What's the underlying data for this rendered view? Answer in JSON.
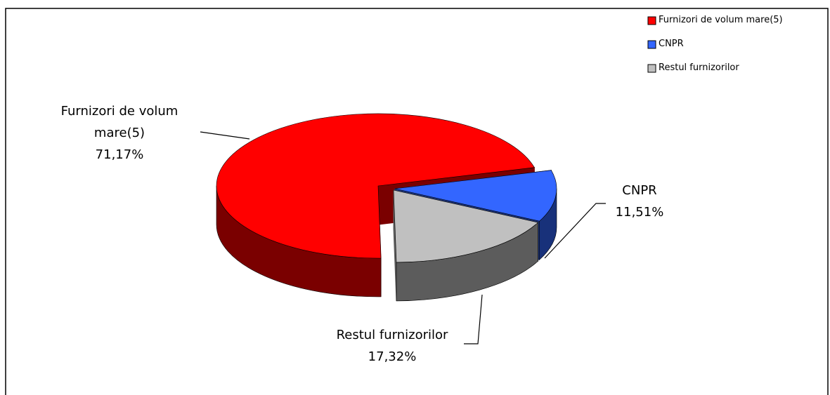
{
  "chart_data": {
    "type": "pie",
    "categories": [
      "Furnizori de volum mare(5)",
      "CNPR",
      "Restul furnizorilor"
    ],
    "values": [
      71.17,
      11.51,
      17.32
    ],
    "value_labels": [
      "71,17%",
      "11,51%",
      "17,32%"
    ],
    "colors": [
      "#ff0000",
      "#3366ff",
      "#c0c0c0"
    ],
    "legend": "top-right"
  }
}
